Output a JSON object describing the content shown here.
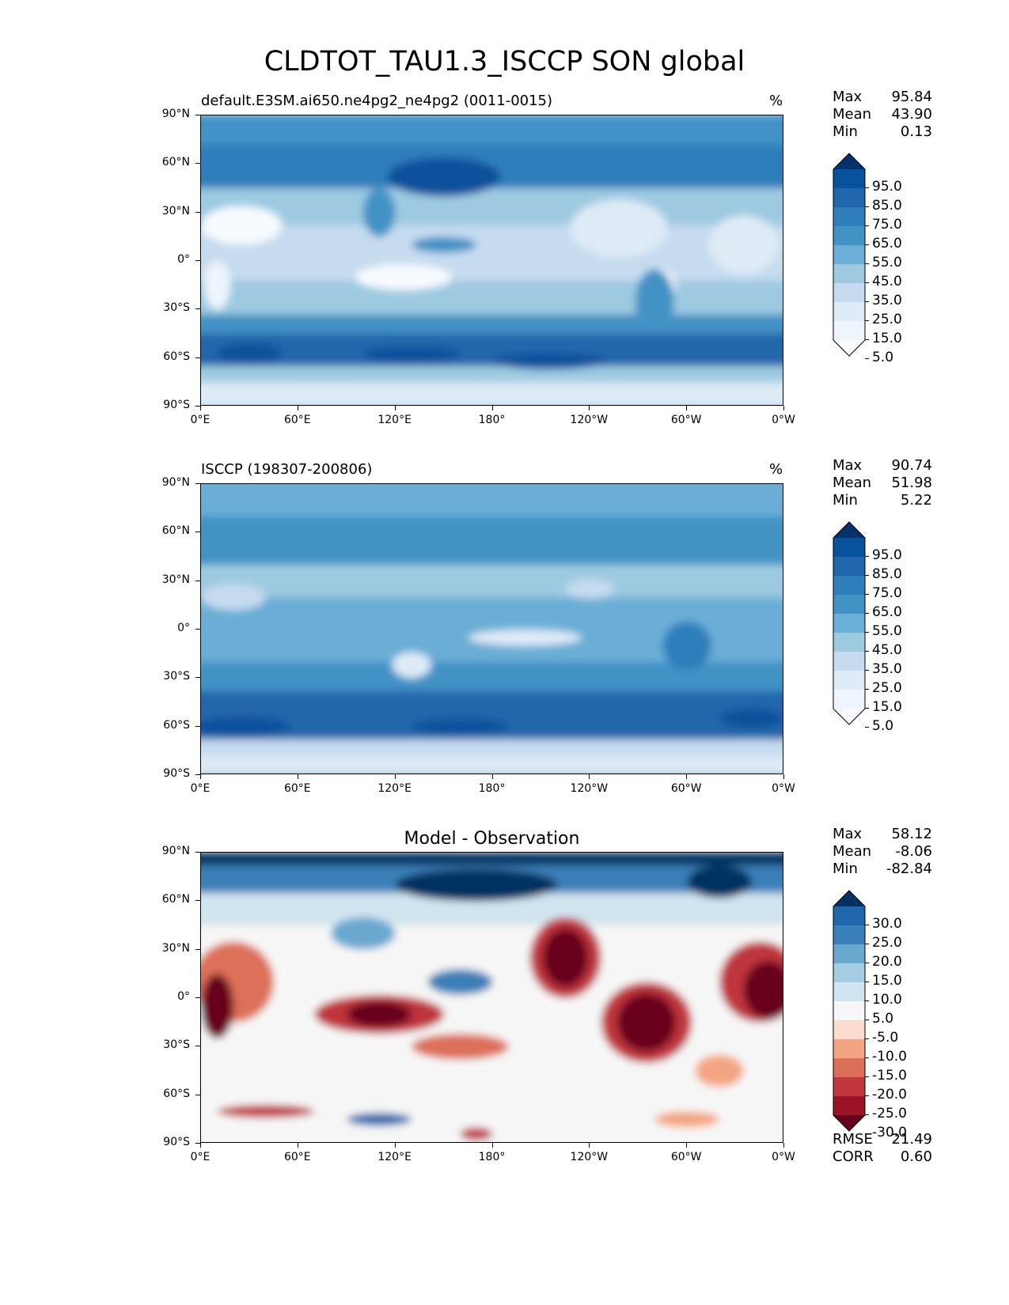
{
  "figure_title": "CLDTOT_TAU1.3_ISCCP SON global",
  "lat_ticks": [
    "90°N",
    "60°N",
    "30°N",
    "0°",
    "30°S",
    "60°S",
    "90°S"
  ],
  "lon_ticks": [
    "0°E",
    "60°E",
    "120°E",
    "180°",
    "120°W",
    "60°W",
    "0°W"
  ],
  "panels": [
    {
      "id": "model",
      "title": "default.E3SM.ai650.ne4pg2_ne4pg2 (0011-0015)",
      "units": "%",
      "stats": {
        "max_label": "Max",
        "max": "95.84",
        "mean_label": "Mean",
        "mean": "43.90",
        "min_label": "Min",
        "min": "0.13"
      },
      "colorbar": {
        "labels": [
          "95.0",
          "85.0",
          "75.0",
          "65.0",
          "55.0",
          "45.0",
          "35.0",
          "25.0",
          "15.0",
          "5.0"
        ],
        "colors": [
          "#08306b",
          "#08519c",
          "#2166ac",
          "#2e7ebc",
          "#4292c6",
          "#6baed6",
          "#9ecae1",
          "#c6dbef",
          "#deebf7",
          "#eef5fc",
          "#f7fbff"
        ]
      }
    },
    {
      "id": "obs",
      "title": "ISCCP (198307-200806)",
      "units": "%",
      "stats": {
        "max_label": "Max",
        "max": "90.74",
        "mean_label": "Mean",
        "mean": "51.98",
        "min_label": "Min",
        "min": "5.22"
      },
      "colorbar": {
        "labels": [
          "95.0",
          "85.0",
          "75.0",
          "65.0",
          "55.0",
          "45.0",
          "35.0",
          "25.0",
          "15.0",
          "5.0"
        ],
        "colors": [
          "#08306b",
          "#08519c",
          "#2166ac",
          "#2e7ebc",
          "#4292c6",
          "#6baed6",
          "#9ecae1",
          "#c6dbef",
          "#deebf7",
          "#eef5fc",
          "#f7fbff"
        ]
      }
    },
    {
      "id": "diff",
      "title": "Model - Observation",
      "units": "",
      "stats": {
        "max_label": "Max",
        "max": "58.12",
        "mean_label": "Mean",
        "mean": "-8.06",
        "min_label": "Min",
        "min": "-82.84"
      },
      "colorbar": {
        "labels": [
          "30.0",
          "25.0",
          "20.0",
          "15.0",
          "10.0",
          "5.0",
          "-5.0",
          "-10.0",
          "-15.0",
          "-20.0",
          "-25.0",
          "-30.0"
        ],
        "colors": [
          "#053061",
          "#2166ac",
          "#3a7fb8",
          "#6aa8d0",
          "#a5cde3",
          "#d1e5f0",
          "#f7f7f7",
          "#fbdccd",
          "#f4a582",
          "#dd6f59",
          "#c0363c",
          "#9a1426",
          "#67001f"
        ]
      },
      "metrics": {
        "rmse_label": "RMSE",
        "rmse": "21.49",
        "corr_label": "CORR",
        "corr": "0.60"
      }
    }
  ],
  "map_data": {
    "model": {
      "background": "#9ecae1",
      "zones": [
        {
          "lat": [
            90,
            72
          ],
          "color": "#4292c6"
        },
        {
          "lat": [
            72,
            45
          ],
          "color": "#2e7ebc"
        },
        {
          "lat": [
            45,
            22
          ],
          "color": "#9ecae1"
        },
        {
          "lat": [
            22,
            -12
          ],
          "color": "#c6dbef"
        },
        {
          "lat": [
            -12,
            -33
          ],
          "color": "#9ecae1"
        },
        {
          "lat": [
            -33,
            -45
          ],
          "color": "#4292c6"
        },
        {
          "lat": [
            -45,
            -65
          ],
          "color": "#2166ac"
        },
        {
          "lat": [
            -65,
            -75
          ],
          "color": "#9ecae1"
        },
        {
          "lat": [
            -75,
            -90
          ],
          "color": "#deebf7"
        }
      ],
      "blobs": [
        {
          "lon": 25,
          "lat": 22,
          "rx": 25,
          "ry": 12,
          "color": "#f7fbff"
        },
        {
          "lon": 10,
          "lat": -15,
          "rx": 8,
          "ry": 15,
          "color": "#eef5fc"
        },
        {
          "lon": 125,
          "lat": -10,
          "rx": 30,
          "ry": 8,
          "color": "#f7fbff"
        },
        {
          "lon": 258,
          "lat": 20,
          "rx": 30,
          "ry": 18,
          "color": "#deebf7"
        },
        {
          "lon": 283,
          "lat": -15,
          "rx": 10,
          "ry": 10,
          "color": "#f7fbff"
        },
        {
          "lon": 335,
          "lat": 10,
          "rx": 22,
          "ry": 18,
          "color": "#deebf7"
        },
        {
          "lon": 150,
          "lat": 52,
          "rx": 35,
          "ry": 12,
          "color": "#08519c"
        },
        {
          "lon": 110,
          "lat": 30,
          "rx": 10,
          "ry": 15,
          "color": "#4292c6"
        },
        {
          "lon": 150,
          "lat": 10,
          "rx": 20,
          "ry": 5,
          "color": "#4292c6"
        },
        {
          "lon": 30,
          "lat": -57,
          "rx": 20,
          "ry": 6,
          "color": "#08519c"
        },
        {
          "lon": 130,
          "lat": -58,
          "rx": 30,
          "ry": 5,
          "color": "#08519c"
        },
        {
          "lon": 215,
          "lat": -62,
          "rx": 35,
          "ry": 5,
          "color": "#08519c"
        },
        {
          "lon": 280,
          "lat": -25,
          "rx": 12,
          "ry": 20,
          "color": "#4292c6"
        }
      ]
    },
    "obs": {
      "background": "#6baed6",
      "zones": [
        {
          "lat": [
            90,
            70
          ],
          "color": "#6baed6"
        },
        {
          "lat": [
            70,
            40
          ],
          "color": "#4292c6"
        },
        {
          "lat": [
            40,
            20
          ],
          "color": "#9ecae1"
        },
        {
          "lat": [
            20,
            -20
          ],
          "color": "#6baed6"
        },
        {
          "lat": [
            -20,
            -38
          ],
          "color": "#4292c6"
        },
        {
          "lat": [
            -38,
            -68
          ],
          "color": "#2166ac"
        },
        {
          "lat": [
            -68,
            -78
          ],
          "color": "#c6dbef"
        },
        {
          "lat": [
            -78,
            -90
          ],
          "color": "#deebf7"
        }
      ],
      "blobs": [
        {
          "lon": 20,
          "lat": 20,
          "rx": 20,
          "ry": 8,
          "color": "#c6dbef"
        },
        {
          "lon": 130,
          "lat": -22,
          "rx": 12,
          "ry": 8,
          "color": "#deebf7"
        },
        {
          "lon": 200,
          "lat": -5,
          "rx": 35,
          "ry": 5,
          "color": "#deebf7"
        },
        {
          "lon": 240,
          "lat": 25,
          "rx": 15,
          "ry": 6,
          "color": "#c6dbef"
        },
        {
          "lon": 300,
          "lat": -10,
          "rx": 15,
          "ry": 15,
          "color": "#2e7ebc"
        },
        {
          "lon": 25,
          "lat": -60,
          "rx": 30,
          "ry": 6,
          "color": "#08519c"
        },
        {
          "lon": 160,
          "lat": -60,
          "rx": 30,
          "ry": 5,
          "color": "#08519c"
        },
        {
          "lon": 340,
          "lat": -55,
          "rx": 20,
          "ry": 6,
          "color": "#08519c"
        }
      ]
    },
    "diff": {
      "background": "#f7f7f7",
      "zones": [
        {
          "lat": [
            90,
            82
          ],
          "color": "#053061"
        },
        {
          "lat": [
            82,
            65
          ],
          "color": "#3a7fb8"
        },
        {
          "lat": [
            65,
            45
          ],
          "color": "#d1e5f0"
        },
        {
          "lat": [
            45,
            -40
          ],
          "color": "#f7f7f7"
        },
        {
          "lat": [
            -40,
            -90
          ],
          "color": "#f7f7f7"
        }
      ],
      "blobs": [
        {
          "lon": 170,
          "lat": 70,
          "rx": 50,
          "ry": 10,
          "color": "#053061"
        },
        {
          "lon": 320,
          "lat": 72,
          "rx": 20,
          "ry": 10,
          "color": "#053061"
        },
        {
          "lon": 20,
          "lat": 10,
          "rx": 25,
          "ry": 25,
          "color": "#dd6f59"
        },
        {
          "lon": 10,
          "lat": -5,
          "rx": 10,
          "ry": 20,
          "color": "#67001f"
        },
        {
          "lon": 110,
          "lat": -10,
          "rx": 40,
          "ry": 12,
          "color": "#c0363c"
        },
        {
          "lon": 110,
          "lat": -10,
          "rx": 20,
          "ry": 8,
          "color": "#67001f"
        },
        {
          "lon": 225,
          "lat": 25,
          "rx": 22,
          "ry": 25,
          "color": "#c0363c"
        },
        {
          "lon": 225,
          "lat": 25,
          "rx": 14,
          "ry": 18,
          "color": "#67001f"
        },
        {
          "lon": 275,
          "lat": -15,
          "rx": 28,
          "ry": 25,
          "color": "#c0363c"
        },
        {
          "lon": 275,
          "lat": -15,
          "rx": 18,
          "ry": 18,
          "color": "#67001f"
        },
        {
          "lon": 345,
          "lat": 10,
          "rx": 25,
          "ry": 25,
          "color": "#c0363c"
        },
        {
          "lon": 350,
          "lat": 5,
          "rx": 15,
          "ry": 18,
          "color": "#67001f"
        },
        {
          "lon": 160,
          "lat": -30,
          "rx": 30,
          "ry": 8,
          "color": "#dd6f59"
        },
        {
          "lon": 160,
          "lat": 10,
          "rx": 20,
          "ry": 8,
          "color": "#3a7fb8"
        },
        {
          "lon": 100,
          "lat": 40,
          "rx": 20,
          "ry": 10,
          "color": "#6aa8d0"
        },
        {
          "lon": 40,
          "lat": -70,
          "rx": 30,
          "ry": 4,
          "color": "#c0363c"
        },
        {
          "lon": 110,
          "lat": -75,
          "rx": 20,
          "ry": 4,
          "color": "#2166ac"
        },
        {
          "lon": 170,
          "lat": -84,
          "rx": 10,
          "ry": 4,
          "color": "#c0363c"
        },
        {
          "lon": 300,
          "lat": -75,
          "rx": 20,
          "ry": 5,
          "color": "#f4a582"
        },
        {
          "lon": 320,
          "lat": -45,
          "rx": 15,
          "ry": 10,
          "color": "#f4a582"
        }
      ]
    }
  }
}
